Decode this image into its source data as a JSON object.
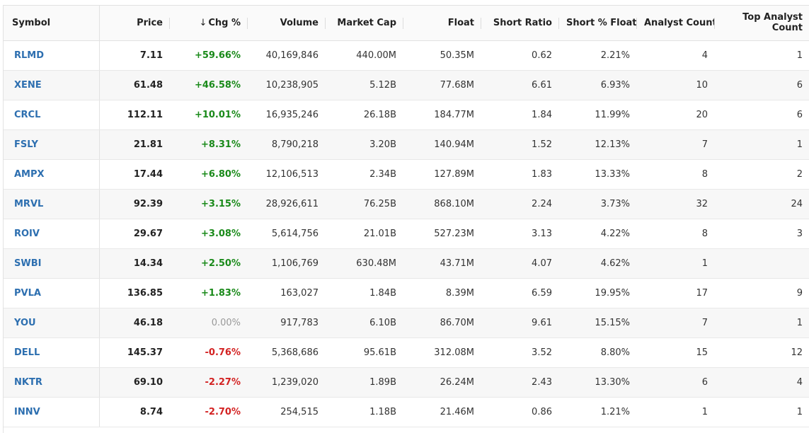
{
  "columns": [
    {
      "key": "symbol",
      "label": "Symbol"
    },
    {
      "key": "price",
      "label": "Price"
    },
    {
      "key": "chg",
      "label": "Chg %",
      "sort_icon": "arrow-down-icon"
    },
    {
      "key": "volume",
      "label": "Volume"
    },
    {
      "key": "mcap",
      "label": "Market Cap"
    },
    {
      "key": "float",
      "label": "Float"
    },
    {
      "key": "short_ratio",
      "label": "Short Ratio"
    },
    {
      "key": "short_pct",
      "label": "Short % Float"
    },
    {
      "key": "analyst",
      "label": "Analyst Count"
    },
    {
      "key": "top_analyst",
      "label_line1": "Top Analyst",
      "label_line2": "Count"
    }
  ],
  "colors": {
    "up": "#1a8a1a",
    "down": "#d32222",
    "flat": "#999999",
    "link": "#2d6fb0"
  },
  "rows": [
    {
      "symbol": "RLMD",
      "price": "7.11",
      "chg": "+59.66%",
      "dir": "up",
      "volume": "40,169,846",
      "mcap": "440.00M",
      "float": "50.35M",
      "short_ratio": "0.62",
      "short_pct": "2.21%",
      "analyst": "4",
      "top_analyst": "1"
    },
    {
      "symbol": "XENE",
      "price": "61.48",
      "chg": "+46.58%",
      "dir": "up",
      "volume": "10,238,905",
      "mcap": "5.12B",
      "float": "77.68M",
      "short_ratio": "6.61",
      "short_pct": "6.93%",
      "analyst": "10",
      "top_analyst": "6"
    },
    {
      "symbol": "CRCL",
      "price": "112.11",
      "chg": "+10.01%",
      "dir": "up",
      "volume": "16,935,246",
      "mcap": "26.18B",
      "float": "184.77M",
      "short_ratio": "1.84",
      "short_pct": "11.99%",
      "analyst": "20",
      "top_analyst": "6"
    },
    {
      "symbol": "FSLY",
      "price": "21.81",
      "chg": "+8.31%",
      "dir": "up",
      "volume": "8,790,218",
      "mcap": "3.20B",
      "float": "140.94M",
      "short_ratio": "1.52",
      "short_pct": "12.13%",
      "analyst": "7",
      "top_analyst": "1"
    },
    {
      "symbol": "AMPX",
      "price": "17.44",
      "chg": "+6.80%",
      "dir": "up",
      "volume": "12,106,513",
      "mcap": "2.34B",
      "float": "127.89M",
      "short_ratio": "1.83",
      "short_pct": "13.33%",
      "analyst": "8",
      "top_analyst": "2"
    },
    {
      "symbol": "MRVL",
      "price": "92.39",
      "chg": "+3.15%",
      "dir": "up",
      "volume": "28,926,611",
      "mcap": "76.25B",
      "float": "868.10M",
      "short_ratio": "2.24",
      "short_pct": "3.73%",
      "analyst": "32",
      "top_analyst": "24"
    },
    {
      "symbol": "ROIV",
      "price": "29.67",
      "chg": "+3.08%",
      "dir": "up",
      "volume": "5,614,756",
      "mcap": "21.01B",
      "float": "527.23M",
      "short_ratio": "3.13",
      "short_pct": "4.22%",
      "analyst": "8",
      "top_analyst": "3"
    },
    {
      "symbol": "SWBI",
      "price": "14.34",
      "chg": "+2.50%",
      "dir": "up",
      "volume": "1,106,769",
      "mcap": "630.48M",
      "float": "43.71M",
      "short_ratio": "4.07",
      "short_pct": "4.62%",
      "analyst": "1",
      "top_analyst": ""
    },
    {
      "symbol": "PVLA",
      "price": "136.85",
      "chg": "+1.83%",
      "dir": "up",
      "volume": "163,027",
      "mcap": "1.84B",
      "float": "8.39M",
      "short_ratio": "6.59",
      "short_pct": "19.95%",
      "analyst": "17",
      "top_analyst": "9"
    },
    {
      "symbol": "YOU",
      "price": "46.18",
      "chg": "0.00%",
      "dir": "flat",
      "volume": "917,783",
      "mcap": "6.10B",
      "float": "86.70M",
      "short_ratio": "9.61",
      "short_pct": "15.15%",
      "analyst": "7",
      "top_analyst": "1"
    },
    {
      "symbol": "DELL",
      "price": "145.37",
      "chg": "-0.76%",
      "dir": "down",
      "volume": "5,368,686",
      "mcap": "95.61B",
      "float": "312.08M",
      "short_ratio": "3.52",
      "short_pct": "8.80%",
      "analyst": "15",
      "top_analyst": "12"
    },
    {
      "symbol": "NKTR",
      "price": "69.10",
      "chg": "-2.27%",
      "dir": "down",
      "volume": "1,239,020",
      "mcap": "1.89B",
      "float": "26.24M",
      "short_ratio": "2.43",
      "short_pct": "13.30%",
      "analyst": "6",
      "top_analyst": "4"
    },
    {
      "symbol": "INNV",
      "price": "8.74",
      "chg": "-2.70%",
      "dir": "down",
      "volume": "254,515",
      "mcap": "1.18B",
      "float": "21.46M",
      "short_ratio": "0.86",
      "short_pct": "1.21%",
      "analyst": "1",
      "top_analyst": "1"
    }
  ]
}
